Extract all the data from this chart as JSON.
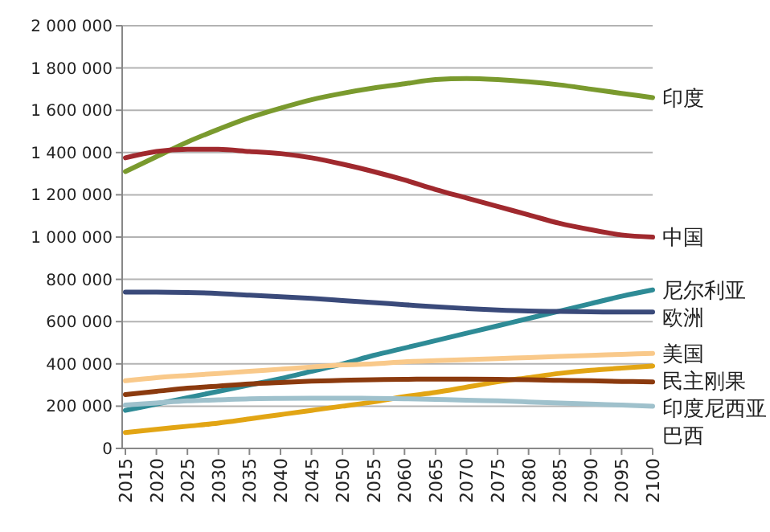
{
  "chart_data": {
    "type": "line",
    "categories": [
      "2015",
      "2020",
      "2025",
      "2030",
      "2035",
      "2040",
      "2045",
      "2050",
      "2055",
      "2060",
      "2065",
      "2070",
      "2075",
      "2080",
      "2085",
      "2090",
      "2095",
      "2100"
    ],
    "series": [
      {
        "name": "印度",
        "color": "#7a9a2e",
        "values": [
          1310000,
          1380000,
          1450000,
          1510000,
          1565000,
          1610000,
          1650000,
          1680000,
          1705000,
          1725000,
          1745000,
          1750000,
          1745000,
          1735000,
          1720000,
          1700000,
          1680000,
          1660000
        ]
      },
      {
        "name": "中国",
        "color": "#a0292e",
        "values": [
          1375000,
          1405000,
          1415000,
          1415000,
          1405000,
          1395000,
          1375000,
          1345000,
          1310000,
          1270000,
          1225000,
          1185000,
          1145000,
          1105000,
          1065000,
          1035000,
          1010000,
          1000000
        ]
      },
      {
        "name": "尼尔利亚",
        "color": "#2e8b96",
        "values": [
          180000,
          210000,
          240000,
          270000,
          300000,
          330000,
          365000,
          400000,
          440000,
          475000,
          510000,
          545000,
          580000,
          615000,
          650000,
          685000,
          720000,
          750000
        ]
      },
      {
        "name": "欧洲",
        "color": "#3a4a7a",
        "values": [
          740000,
          740000,
          738000,
          733000,
          725000,
          718000,
          710000,
          700000,
          690000,
          680000,
          670000,
          662000,
          655000,
          650000,
          648000,
          646000,
          645000,
          645000
        ]
      },
      {
        "name": "美国",
        "color": "#f9c98a",
        "values": [
          320000,
          335000,
          345000,
          355000,
          365000,
          375000,
          385000,
          395000,
          400000,
          410000,
          415000,
          420000,
          425000,
          430000,
          435000,
          440000,
          445000,
          450000
        ]
      },
      {
        "name": "民主刚果",
        "color": "#e2a514",
        "values": [
          75000,
          90000,
          105000,
          120000,
          140000,
          160000,
          180000,
          200000,
          220000,
          245000,
          265000,
          290000,
          315000,
          335000,
          355000,
          370000,
          380000,
          390000
        ]
      },
      {
        "name": "印度尼西亚",
        "color": "#8b3a0e",
        "values": [
          255000,
          270000,
          285000,
          295000,
          305000,
          312000,
          318000,
          322000,
          325000,
          327000,
          328000,
          328000,
          327000,
          325000,
          322000,
          320000,
          317000,
          315000
        ]
      },
      {
        "name": "巴西",
        "color": "#9fc1cc",
        "values": [
          205000,
          215000,
          225000,
          230000,
          235000,
          237000,
          238000,
          238000,
          237000,
          235000,
          232000,
          228000,
          225000,
          220000,
          215000,
          210000,
          205000,
          200000
        ]
      }
    ],
    "ylim": [
      0,
      2000000
    ],
    "yticks": [
      {
        "value": 0,
        "label": "0"
      },
      {
        "value": 200000,
        "label": "200 000"
      },
      {
        "value": 400000,
        "label": "400 000"
      },
      {
        "value": 600000,
        "label": "600 000"
      },
      {
        "value": 800000,
        "label": "800 000"
      },
      {
        "value": 1000000,
        "label": "1 000 000"
      },
      {
        "value": 1200000,
        "label": "1 200 000"
      },
      {
        "value": 1400000,
        "label": "1 400 000"
      },
      {
        "value": 1600000,
        "label": "1 600 000"
      },
      {
        "value": 1800000,
        "label": "1 800 000"
      },
      {
        "value": 2000000,
        "label": "2 000 000"
      }
    ],
    "grid": "y"
  }
}
